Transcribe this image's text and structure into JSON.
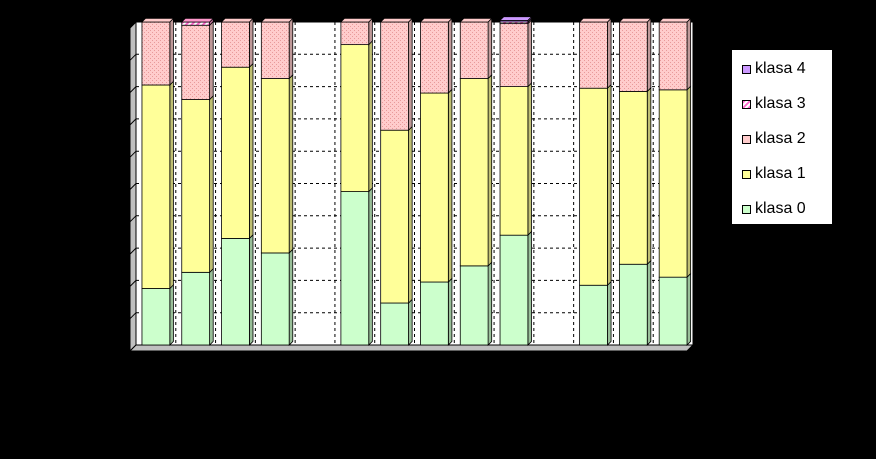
{
  "chart_data": {
    "type": "bar",
    "stacked": true,
    "percent": true,
    "xlabel": "",
    "ylabel": "",
    "ylim": [
      0,
      100
    ],
    "grid": true,
    "legend_position": "right",
    "categories_visible": false,
    "slots": 14,
    "gaps": [
      4,
      10
    ],
    "series": [
      {
        "name": "klasa 0",
        "color": "#ccffcc",
        "pattern": "solid",
        "values": [
          17.5,
          22.5,
          33,
          28.5,
          47.5,
          13,
          19.5,
          24.5,
          34,
          18.5,
          25,
          21
        ]
      },
      {
        "name": "klasa 1",
        "color": "#ffff99",
        "pattern": "solid",
        "values": [
          63,
          53.5,
          53,
          54,
          45.5,
          53.5,
          58.5,
          58,
          46,
          61,
          53.5,
          58
        ]
      },
      {
        "name": "klasa 2",
        "color": "#ffcccc",
        "pattern": "dotted",
        "values": [
          19.5,
          23,
          14,
          17.5,
          7,
          33.5,
          22,
          17.5,
          19.5,
          20.5,
          21.5,
          21
        ]
      },
      {
        "name": "klasa 3",
        "color": "#ff99cc",
        "pattern": "hatch",
        "values": [
          0,
          1,
          0,
          0,
          0,
          0,
          0,
          0,
          0.5,
          0,
          0,
          0
        ]
      },
      {
        "name": "klasa 4",
        "color": "#cc99ff",
        "pattern": "solid",
        "values": [
          0,
          0,
          0,
          0,
          0,
          0,
          0,
          0,
          0.5,
          0,
          0,
          0
        ]
      }
    ]
  }
}
